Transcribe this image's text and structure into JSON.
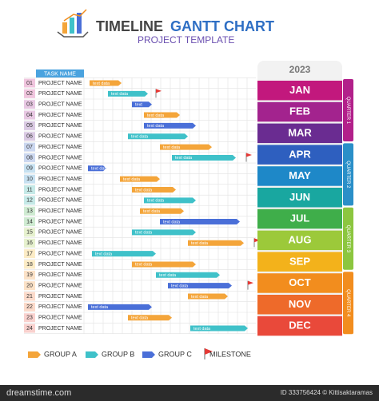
{
  "header": {
    "title_a": "TIMELINE",
    "title_b": "GANTT CHART",
    "subtitle": "PROJECT TEMPLATE"
  },
  "table": {
    "header": "TASK NAME",
    "year": "2023",
    "tasks": [
      {
        "number": "01",
        "name": "PROJECT NAME",
        "bar": "text data"
      },
      {
        "number": "02",
        "name": "PROJECT NAME",
        "bar": "text data"
      },
      {
        "number": "03",
        "name": "PROJECT NAME",
        "bar": "text"
      },
      {
        "number": "04",
        "name": "PROJECT NAME",
        "bar": "text data"
      },
      {
        "number": "05",
        "name": "PROJECT NAME",
        "bar": "text data"
      },
      {
        "number": "06",
        "name": "PROJECT NAME",
        "bar": "text data"
      },
      {
        "number": "07",
        "name": "PROJECT NAME",
        "bar": "text data"
      },
      {
        "number": "08",
        "name": "PROJECT NAME",
        "bar": "text data"
      },
      {
        "number": "09",
        "name": "PROJECT NAME",
        "bar": "text data"
      },
      {
        "number": "10",
        "name": "PROJECT NAME",
        "bar": "text data"
      },
      {
        "number": "11",
        "name": "PROJECT NAME",
        "bar": "text data"
      },
      {
        "number": "12",
        "name": "PROJECT NAME",
        "bar": "text data"
      },
      {
        "number": "13",
        "name": "PROJECT NAME",
        "bar": "text data"
      },
      {
        "number": "14",
        "name": "PROJECT NAME",
        "bar": "text data"
      },
      {
        "number": "15",
        "name": "PROJECT NAME",
        "bar": "text data"
      },
      {
        "number": "16",
        "name": "PROJECT NAME",
        "bar": "text data"
      },
      {
        "number": "17",
        "name": "PROJECT NAME",
        "bar": "text data"
      },
      {
        "number": "18",
        "name": "PROJECT NAME",
        "bar": "text data"
      },
      {
        "number": "19",
        "name": "PROJECT NAME",
        "bar": "text data"
      },
      {
        "number": "20",
        "name": "PROJECT NAME",
        "bar": "text data"
      },
      {
        "number": "21",
        "name": "PROJECT NAME",
        "bar": "text data"
      },
      {
        "number": "22",
        "name": "PROJECT NAME",
        "bar": "text data"
      },
      {
        "number": "23",
        "name": "PROJECT NAME",
        "bar": "text data"
      },
      {
        "number": "24",
        "name": "PROJECT NAME",
        "bar": "text data"
      }
    ],
    "months": [
      "JAN",
      "FEB",
      "MAR",
      "APR",
      "MAY",
      "JUN",
      "JUL",
      "AUG",
      "SEP",
      "OCT",
      "NOV",
      "DEC"
    ],
    "quarters": [
      "QUARTER 1",
      "QUARTER 2",
      "QUARTER 3",
      "QUARTER 4"
    ]
  },
  "legend": [
    "GROUP A",
    "GROUP B",
    "GROUP C",
    "MILESTONE"
  ],
  "watermark": {
    "site": "dreamstime.com",
    "id": "ID 333756424 © Kittisaktaramas"
  }
}
